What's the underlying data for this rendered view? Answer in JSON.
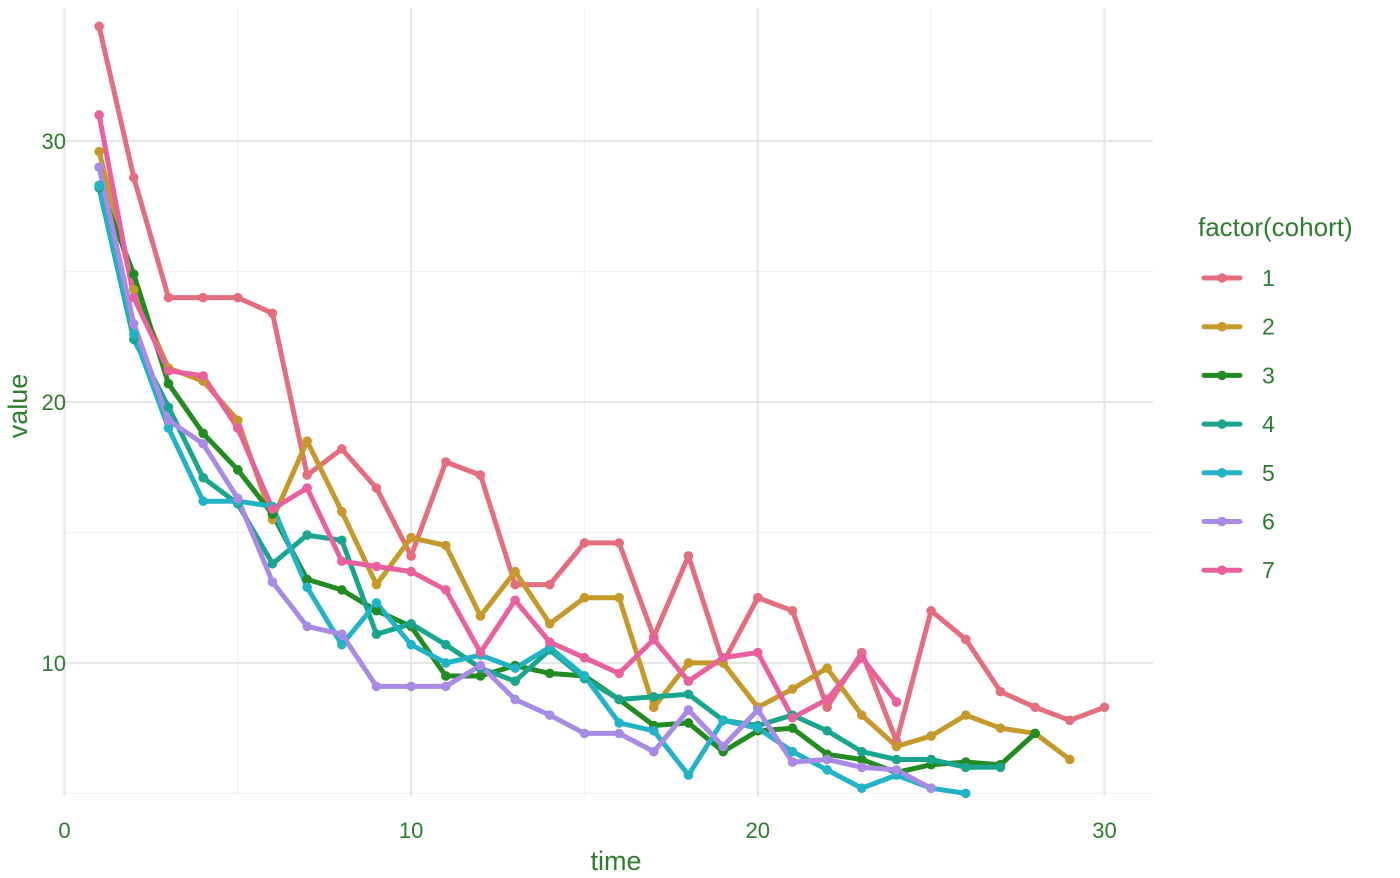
{
  "chart_data": {
    "type": "line",
    "xlabel": "time",
    "ylabel": "value",
    "xlim": [
      -0.1,
      31.4
    ],
    "ylim": [
      4.9,
      35.1
    ],
    "x_ticks": [
      0,
      10,
      20,
      30
    ],
    "x_tick_labels": [
      "0",
      "10",
      "20",
      "30"
    ],
    "y_ticks": [
      10,
      20,
      30
    ],
    "y_tick_labels": [
      "10",
      "20",
      "30"
    ],
    "x_minor_ticks": [
      5,
      15,
      25
    ],
    "y_minor_ticks": [
      5,
      15,
      25
    ],
    "grid": true,
    "legend": {
      "title": "factor(cohort)",
      "position": "right"
    },
    "series": [
      {
        "name": "1",
        "color": "#E56E7E",
        "x": [
          1,
          2,
          3,
          4,
          5,
          6,
          7,
          8,
          9,
          10,
          11,
          12,
          13,
          14,
          15,
          16,
          17,
          18,
          19,
          20,
          21,
          22,
          23,
          24,
          25,
          26,
          27,
          28,
          29,
          30
        ],
        "values": [
          34.4,
          28.6,
          24.0,
          24.0,
          24.0,
          23.4,
          17.2,
          18.2,
          16.7,
          14.1,
          17.7,
          17.2,
          13.0,
          13.0,
          14.6,
          14.6,
          11.0,
          14.1,
          10.0,
          12.5,
          12.0,
          8.3,
          10.4,
          7.0,
          12.0,
          10.9,
          8.9,
          8.3,
          7.8,
          8.3
        ]
      },
      {
        "name": "2",
        "color": "#C59A2A",
        "x": [
          1,
          2,
          3,
          4,
          5,
          6,
          7,
          8,
          9,
          10,
          11,
          12,
          13,
          14,
          15,
          16,
          17,
          18,
          19,
          20,
          21,
          22,
          23,
          24,
          25,
          26,
          27,
          28,
          29
        ],
        "values": [
          29.6,
          24.3,
          21.3,
          20.8,
          19.3,
          15.5,
          18.5,
          15.8,
          13.0,
          14.8,
          14.5,
          11.8,
          13.5,
          11.5,
          12.5,
          12.5,
          8.3,
          10.0,
          10.0,
          8.3,
          9.0,
          9.8,
          8.0,
          6.8,
          7.2,
          8.0,
          7.5,
          7.3,
          6.3
        ]
      },
      {
        "name": "3",
        "color": "#228B22",
        "x": [
          1,
          2,
          3,
          4,
          5,
          6,
          7,
          8,
          9,
          10,
          11,
          12,
          13,
          14,
          15,
          16,
          17,
          18,
          19,
          20,
          21,
          22,
          23,
          24,
          25,
          26,
          27,
          28
        ],
        "values": [
          28.3,
          24.9,
          20.7,
          18.8,
          17.4,
          15.7,
          13.2,
          12.8,
          12.0,
          11.4,
          9.5,
          9.5,
          9.9,
          9.6,
          9.5,
          8.6,
          7.6,
          7.7,
          6.6,
          7.4,
          7.5,
          6.5,
          6.3,
          5.8,
          6.1,
          6.2,
          6.1,
          7.3
        ]
      },
      {
        "name": "4",
        "color": "#1AA68E",
        "x": [
          1,
          2,
          3,
          4,
          5,
          6,
          7,
          8,
          9,
          10,
          11,
          12,
          13,
          14,
          15,
          16,
          17,
          18,
          19,
          20,
          21,
          22,
          23,
          24,
          25,
          26,
          27
        ],
        "values": [
          28.2,
          22.4,
          19.8,
          17.1,
          16.1,
          13.8,
          14.9,
          14.7,
          11.1,
          11.5,
          10.7,
          9.8,
          9.3,
          10.5,
          9.4,
          8.6,
          8.7,
          8.8,
          7.8,
          7.6,
          8.0,
          7.4,
          6.6,
          6.3,
          6.3,
          6.0,
          6.0
        ]
      },
      {
        "name": "5",
        "color": "#22B3C6",
        "x": [
          1,
          2,
          3,
          4,
          5,
          6,
          7,
          8,
          9,
          10,
          11,
          12,
          13,
          14,
          15,
          16,
          17,
          18,
          19,
          20,
          21,
          22,
          23,
          24,
          25,
          26
        ],
        "values": [
          28.3,
          22.6,
          19.0,
          16.2,
          16.2,
          16.0,
          12.9,
          10.7,
          12.3,
          10.7,
          10.0,
          10.3,
          9.8,
          10.6,
          9.5,
          7.7,
          7.4,
          5.7,
          7.8,
          7.5,
          6.6,
          5.9,
          5.2,
          5.7,
          5.2,
          5.0
        ]
      },
      {
        "name": "6",
        "color": "#A98BE5",
        "x": [
          1,
          2,
          3,
          4,
          5,
          6,
          7,
          8,
          9,
          10,
          11,
          12,
          13,
          14,
          15,
          16,
          17,
          18,
          19,
          20,
          21,
          22,
          23,
          24,
          25
        ],
        "values": [
          29.0,
          23.0,
          19.3,
          18.4,
          16.3,
          13.1,
          11.4,
          11.1,
          9.1,
          9.1,
          9.1,
          9.9,
          8.6,
          8.0,
          7.3,
          7.3,
          6.6,
          8.2,
          6.8,
          8.2,
          6.2,
          6.3,
          6.0,
          5.9,
          5.2
        ]
      },
      {
        "name": "7",
        "color": "#E9609F",
        "x": [
          1,
          2,
          3,
          4,
          5,
          6,
          7,
          8,
          9,
          10,
          11,
          12,
          13,
          14,
          15,
          16,
          17,
          18,
          19,
          20,
          21,
          22,
          23,
          24
        ],
        "values": [
          31.0,
          24.0,
          21.2,
          21.0,
          19.0,
          15.9,
          16.7,
          13.9,
          13.7,
          13.5,
          12.8,
          10.4,
          12.4,
          10.8,
          10.2,
          9.6,
          10.9,
          9.3,
          10.2,
          10.4,
          7.9,
          8.6,
          10.2,
          8.5
        ]
      }
    ]
  }
}
